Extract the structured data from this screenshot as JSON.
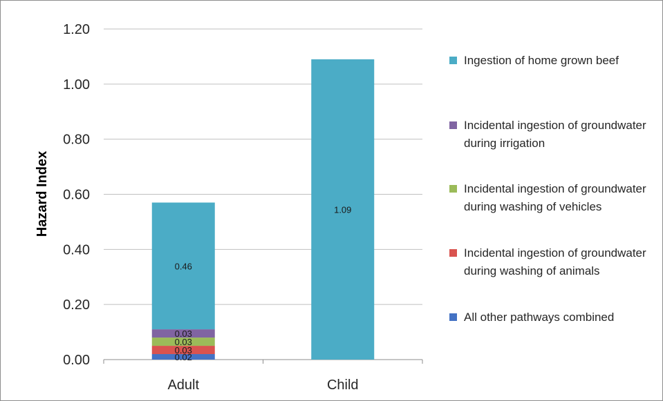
{
  "chart_data": {
    "type": "bar",
    "stacked": true,
    "title": "",
    "xlabel": "",
    "ylabel": "Hazard Index",
    "ylim": [
      0,
      1.2
    ],
    "y_ticks": [
      "0.00",
      "0.20",
      "0.40",
      "0.60",
      "0.80",
      "1.00",
      "1.20"
    ],
    "y_tick_values": [
      0,
      0.2,
      0.4,
      0.6,
      0.8,
      1.0,
      1.2
    ],
    "grid": true,
    "legend_position": "right",
    "categories": [
      "Adult",
      "Child"
    ],
    "series": [
      {
        "name": "All other pathways combined",
        "color": "#4472c4",
        "values": [
          0.02,
          0
        ],
        "labels": [
          "0.02",
          ""
        ]
      },
      {
        "name": "Incidental ingestion of groundwater during washing of animals",
        "color": "#d9534f",
        "values": [
          0.03,
          0
        ],
        "labels": [
          "0.03",
          ""
        ]
      },
      {
        "name": "Incidental ingestion of groundwater during washing of vehicles",
        "color": "#9bbb59",
        "values": [
          0.03,
          0
        ],
        "labels": [
          "0.03",
          ""
        ]
      },
      {
        "name": "Incidental ingestion of groundwater during irrigation",
        "color": "#8064a2",
        "values": [
          0.03,
          0
        ],
        "labels": [
          "0.03",
          ""
        ]
      },
      {
        "name": "Ingestion of home grown beef",
        "color": "#4bacc6",
        "values": [
          0.46,
          1.09
        ],
        "labels": [
          "0.46",
          "1.09"
        ]
      }
    ],
    "legend_order": [
      4,
      3,
      2,
      1,
      0
    ]
  }
}
